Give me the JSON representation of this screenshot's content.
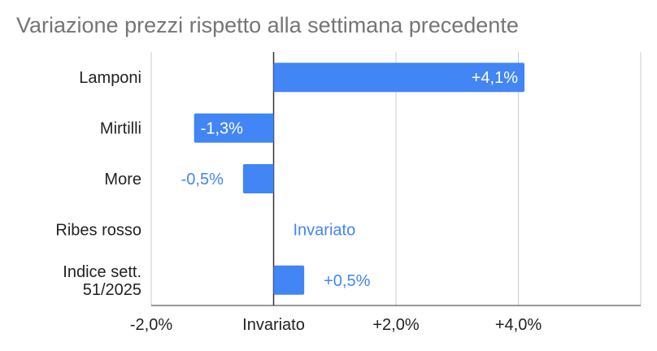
{
  "chart_data": {
    "type": "bar",
    "orientation": "horizontal",
    "title": "Variazione prezzi rispetto alla settimana precedente",
    "categories": [
      "Lamponi",
      "Mirtilli",
      "More",
      "Ribes rosso",
      "Indice sett. 51/2025"
    ],
    "values": [
      4.1,
      -1.3,
      -0.5,
      0.0,
      0.5
    ],
    "data_labels": [
      "+4,1%",
      "-1,3%",
      "-0,5%",
      "Invariato",
      "+0,5%"
    ],
    "xlim": [
      -2.0,
      6.0
    ],
    "x_ticks": [
      {
        "value": -2.0,
        "label": "-2,0%"
      },
      {
        "value": 0.0,
        "label": "Invariato"
      },
      {
        "value": 2.0,
        "label": "+2,0%"
      },
      {
        "value": 4.0,
        "label": "+4,0%"
      }
    ],
    "xlabel": "",
    "ylabel": "",
    "grid": true,
    "legend": "none",
    "colors": {
      "bar": "#4285f4",
      "label_inside": "#ffffff",
      "label_outside": "#4285f4",
      "grid": "#cccccc",
      "zero_line": "#333333",
      "category_text": "#222222",
      "title_text": "#757575"
    }
  }
}
